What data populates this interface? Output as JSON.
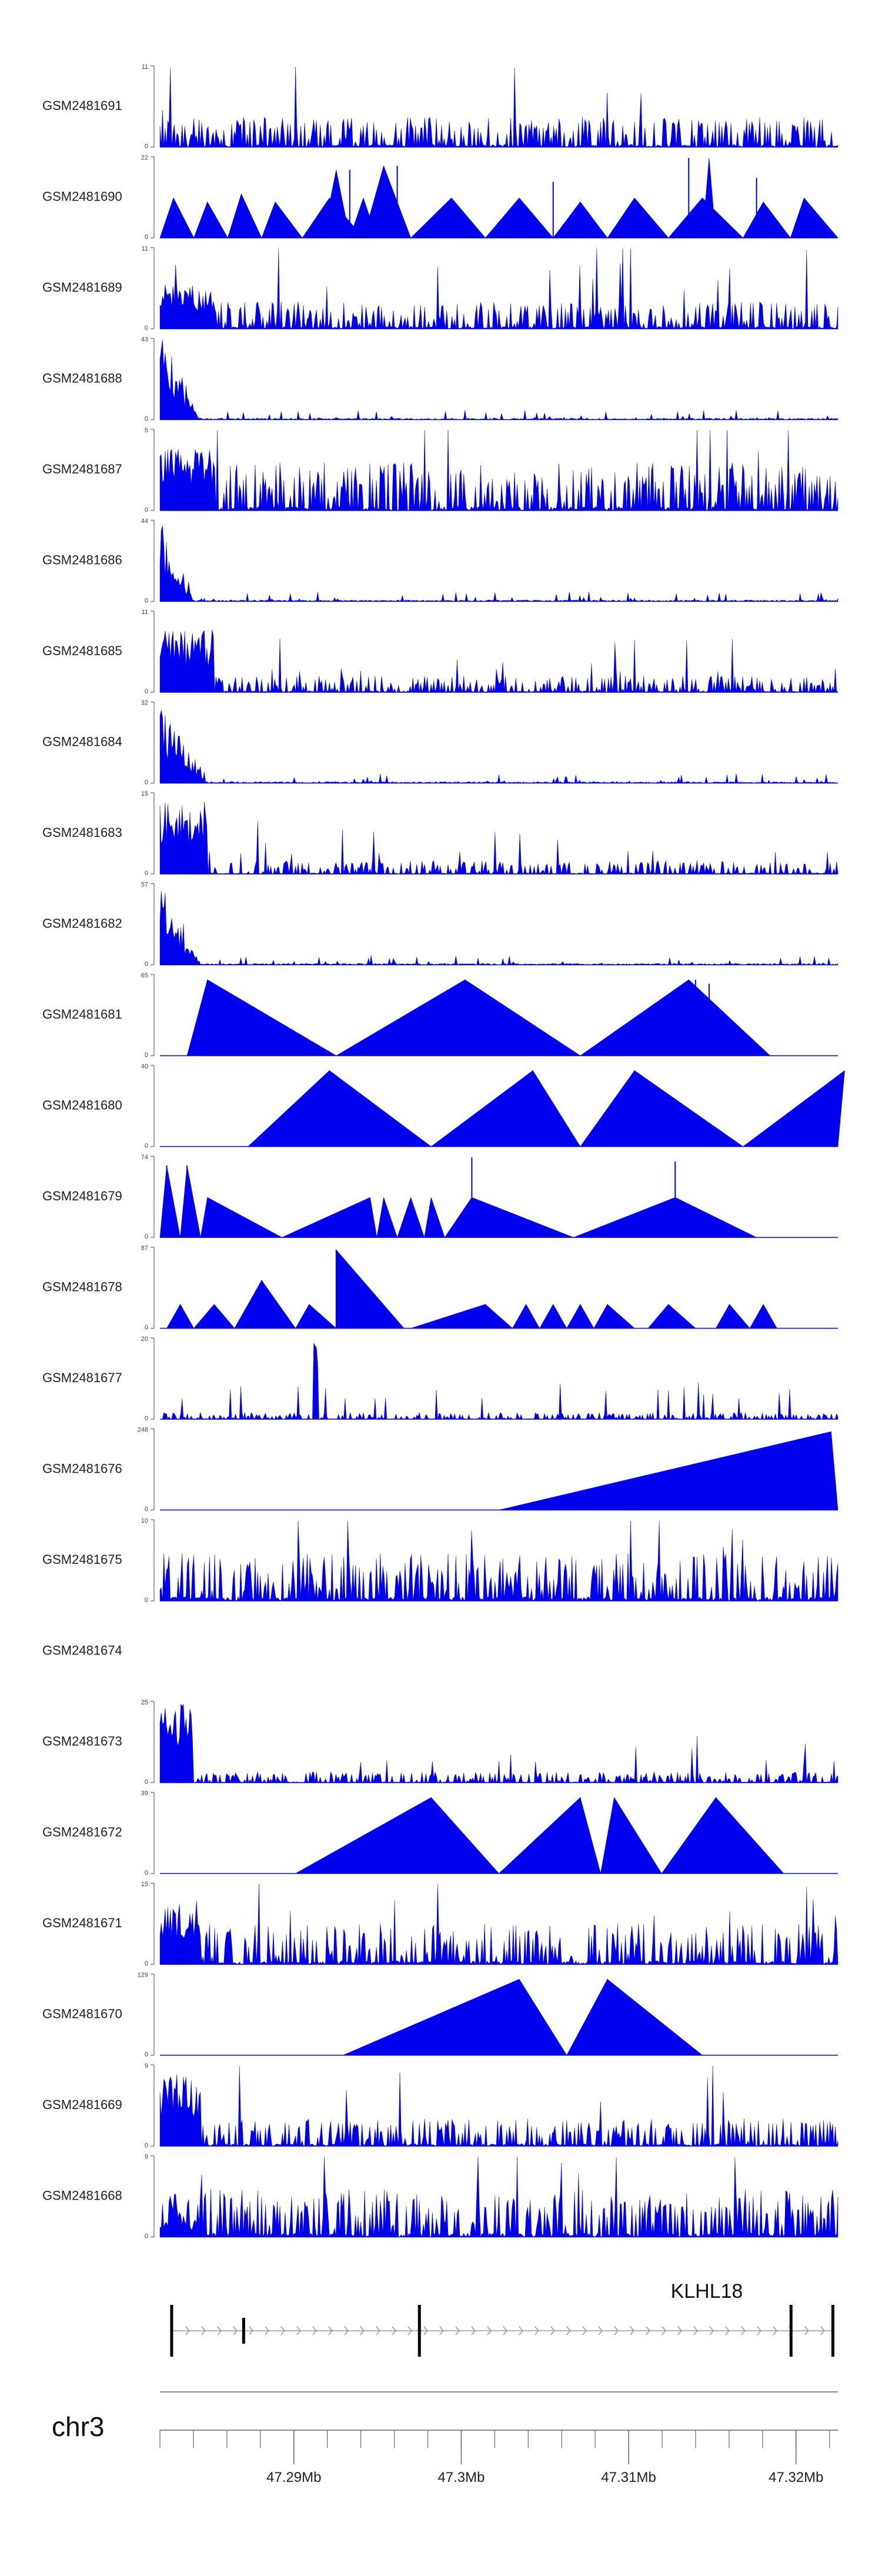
{
  "chart_data": {
    "type": "area",
    "title": "",
    "chromosome": "chr3",
    "x_axis": {
      "unit": "Mb",
      "range": [
        47.282,
        47.3225
      ],
      "ticks": [
        {
          "value": 47.29,
          "label": "47.29Mb"
        },
        {
          "value": 47.3,
          "label": "47.3Mb"
        },
        {
          "value": 47.31,
          "label": "47.31Mb"
        },
        {
          "value": 47.32,
          "label": "47.32Mb"
        }
      ],
      "minor_step": 0.002
    },
    "gene": {
      "name": "KLHL18",
      "start": 47.2827,
      "end": 47.3222,
      "strand": "+",
      "exons": [
        47.2827,
        47.287,
        47.2975,
        47.3197,
        47.3222
      ]
    },
    "colors": {
      "fill": "#0000ee",
      "axis": "#666666",
      "gene": "#000000",
      "intron_arrow": "#999999"
    },
    "tracks": [
      {
        "name": "GSM2481691",
        "ymax": 11,
        "pattern": "dense",
        "seed": 11,
        "peak": 0.0,
        "pct": 0.12,
        "mean": 0.22
      },
      {
        "name": "GSM2481690",
        "ymax": 22,
        "pattern": "tri",
        "tri": [
          [
            0.0,
            0.02,
            0.05,
            0.5
          ],
          [
            0.05,
            0.07,
            0.1,
            0.45
          ],
          [
            0.1,
            0.12,
            0.15,
            0.55
          ],
          [
            0.15,
            0.17,
            0.21,
            0.45
          ],
          [
            0.21,
            0.25,
            0.3,
            0.5
          ],
          [
            0.24,
            0.26,
            0.28,
            0.85
          ],
          [
            0.28,
            0.3,
            0.32,
            0.5
          ],
          [
            0.3,
            0.33,
            0.37,
            0.9
          ],
          [
            0.37,
            0.43,
            0.48,
            0.5
          ],
          [
            0.48,
            0.53,
            0.58,
            0.5
          ],
          [
            0.58,
            0.62,
            0.66,
            0.45
          ],
          [
            0.66,
            0.7,
            0.75,
            0.5
          ],
          [
            0.75,
            0.8,
            0.86,
            0.5
          ],
          [
            0.8,
            0.81,
            0.82,
            1.0
          ],
          [
            0.86,
            0.89,
            0.93,
            0.45
          ],
          [
            0.93,
            0.95,
            1.08,
            0.5
          ]
        ],
        "spikes": [
          [
            0.28,
            0.85
          ],
          [
            0.35,
            0.9
          ],
          [
            0.58,
            0.7
          ],
          [
            0.78,
            1.0
          ],
          [
            0.88,
            0.75
          ]
        ]
      },
      {
        "name": "GSM2481689",
        "ymax": 11,
        "pattern": "dense",
        "seed": 89,
        "peak": 0.55,
        "pct": 0.08,
        "mean": 0.2
      },
      {
        "name": "GSM2481688",
        "ymax": 43,
        "pattern": "spiky",
        "seed": 88,
        "peak": 1.0,
        "pct": 0.06,
        "mean": 0.03
      },
      {
        "name": "GSM2481687",
        "ymax": 5,
        "pattern": "dense",
        "seed": 87,
        "peak": 0.8,
        "pct": 0.08,
        "mean": 0.35
      },
      {
        "name": "GSM2481686",
        "ymax": 44,
        "pattern": "spiky",
        "seed": 86,
        "peak": 1.0,
        "pct": 0.05,
        "mean": 0.03
      },
      {
        "name": "GSM2481685",
        "ymax": 11,
        "pattern": "dense",
        "seed": 85,
        "peak": 0.8,
        "pct": 0.08,
        "mean": 0.12
      },
      {
        "name": "GSM2481684",
        "ymax": 32,
        "pattern": "spiky",
        "seed": 84,
        "peak": 1.0,
        "pct": 0.07,
        "mean": 0.03
      },
      {
        "name": "GSM2481683",
        "ymax": 15,
        "pattern": "dense",
        "seed": 83,
        "peak": 0.9,
        "pct": 0.07,
        "mean": 0.1
      },
      {
        "name": "GSM2481682",
        "ymax": 57,
        "pattern": "spiky",
        "seed": 82,
        "peak": 1.0,
        "pct": 0.06,
        "mean": 0.03
      },
      {
        "name": "GSM2481681",
        "ymax": 65,
        "pattern": "tri",
        "tri": [
          [
            0.04,
            0.07,
            0.26,
            0.95
          ],
          [
            0.26,
            0.45,
            0.62,
            0.95
          ],
          [
            0.62,
            0.78,
            0.9,
            0.95
          ]
        ],
        "spikes": [
          [
            0.45,
            0.95
          ],
          [
            0.79,
            0.95
          ],
          [
            0.81,
            0.9
          ]
        ]
      },
      {
        "name": "GSM2481680",
        "ymax": 40,
        "pattern": "tri",
        "tri": [
          [
            0.13,
            0.25,
            0.4,
            0.95
          ],
          [
            0.4,
            0.55,
            0.62,
            0.95
          ],
          [
            0.62,
            0.7,
            0.86,
            0.95
          ],
          [
            0.86,
            1.01,
            1.01,
            0.95
          ]
        ],
        "spikes": [
          [
            0.25,
            0.95
          ],
          [
            0.7,
            0.95
          ]
        ]
      },
      {
        "name": "GSM2481679",
        "ymax": 74,
        "pattern": "tri",
        "tri": [
          [
            0.0,
            0.01,
            0.03,
            0.9
          ],
          [
            0.03,
            0.04,
            0.06,
            0.9
          ],
          [
            0.06,
            0.07,
            0.18,
            0.5
          ],
          [
            0.18,
            0.31,
            0.32,
            0.5
          ],
          [
            0.32,
            0.33,
            0.35,
            0.5
          ],
          [
            0.35,
            0.37,
            0.39,
            0.5
          ],
          [
            0.39,
            0.4,
            0.42,
            0.5
          ],
          [
            0.42,
            0.46,
            0.61,
            0.5
          ],
          [
            0.61,
            0.76,
            0.88,
            0.5
          ]
        ],
        "spikes": [
          [
            0.01,
            0.9
          ],
          [
            0.04,
            0.9
          ],
          [
            0.46,
            1.0
          ],
          [
            0.76,
            0.95
          ]
        ]
      },
      {
        "name": "GSM2481678",
        "ymax": 87,
        "pattern": "tri",
        "tri": [
          [
            0.01,
            0.03,
            0.05,
            0.3
          ],
          [
            0.05,
            0.08,
            0.11,
            0.3
          ],
          [
            0.11,
            0.15,
            0.2,
            0.6
          ],
          [
            0.2,
            0.22,
            0.26,
            0.3
          ],
          [
            0.26,
            0.26,
            0.36,
            0.98
          ],
          [
            0.37,
            0.48,
            0.52,
            0.3
          ],
          [
            0.52,
            0.54,
            0.56,
            0.3
          ],
          [
            0.56,
            0.58,
            0.6,
            0.3
          ],
          [
            0.6,
            0.62,
            0.64,
            0.3
          ],
          [
            0.64,
            0.66,
            0.7,
            0.3
          ],
          [
            0.72,
            0.75,
            0.79,
            0.3
          ],
          [
            0.82,
            0.84,
            0.87,
            0.3
          ],
          [
            0.87,
            0.89,
            0.91,
            0.3
          ]
        ],
        "spikes": [
          [
            0.26,
            0.98
          ],
          [
            0.15,
            0.6
          ]
        ]
      },
      {
        "name": "GSM2481677",
        "ymax": 20,
        "pattern": "dense",
        "seed": 77,
        "peak": 0.0,
        "pct": 0.2,
        "mean": 0.05,
        "extra_spike": [
          0.23,
          1.0
        ]
      },
      {
        "name": "GSM2481676",
        "ymax": 248,
        "pattern": "tri",
        "tri": [
          [
            0.5,
            0.99,
            1.0,
            0.98
          ]
        ],
        "spikes": []
      },
      {
        "name": "GSM2481675",
        "ymax": 10,
        "pattern": "dense",
        "seed": 75,
        "peak": 0.05,
        "pct": 0.06,
        "mean": 0.35
      },
      {
        "name": "GSM2481674",
        "ymax": null,
        "pattern": "empty"
      },
      {
        "name": "GSM2481673",
        "ymax": 25,
        "pattern": "dense",
        "seed": 73,
        "peak": 1.0,
        "pct": 0.05,
        "mean": 0.08
      },
      {
        "name": "GSM2481672",
        "ymax": 39,
        "pattern": "tri",
        "tri": [
          [
            0.2,
            0.4,
            0.5,
            0.95
          ],
          [
            0.5,
            0.62,
            0.65,
            0.95
          ],
          [
            0.65,
            0.67,
            0.74,
            0.95
          ],
          [
            0.74,
            0.82,
            0.92,
            0.95
          ]
        ],
        "spikes": [
          [
            0.62,
            0.95
          ],
          [
            0.82,
            0.95
          ]
        ]
      },
      {
        "name": "GSM2481671",
        "ymax": 15,
        "pattern": "dense",
        "seed": 71,
        "peak": 0.8,
        "pct": 0.06,
        "mean": 0.3
      },
      {
        "name": "GSM2481670",
        "ymax": 129,
        "pattern": "tri",
        "tri": [
          [
            0.27,
            0.53,
            0.6,
            0.95
          ],
          [
            0.6,
            0.66,
            0.8,
            0.95
          ]
        ],
        "spikes": [
          [
            0.66,
            0.95
          ]
        ]
      },
      {
        "name": "GSM2481669",
        "ymax": 9,
        "pattern": "dense",
        "seed": 69,
        "peak": 0.9,
        "pct": 0.06,
        "mean": 0.2
      },
      {
        "name": "GSM2481668",
        "ymax": 9,
        "pattern": "dense",
        "seed": 68,
        "peak": 0.2,
        "pct": 0.06,
        "mean": 0.35
      }
    ]
  }
}
